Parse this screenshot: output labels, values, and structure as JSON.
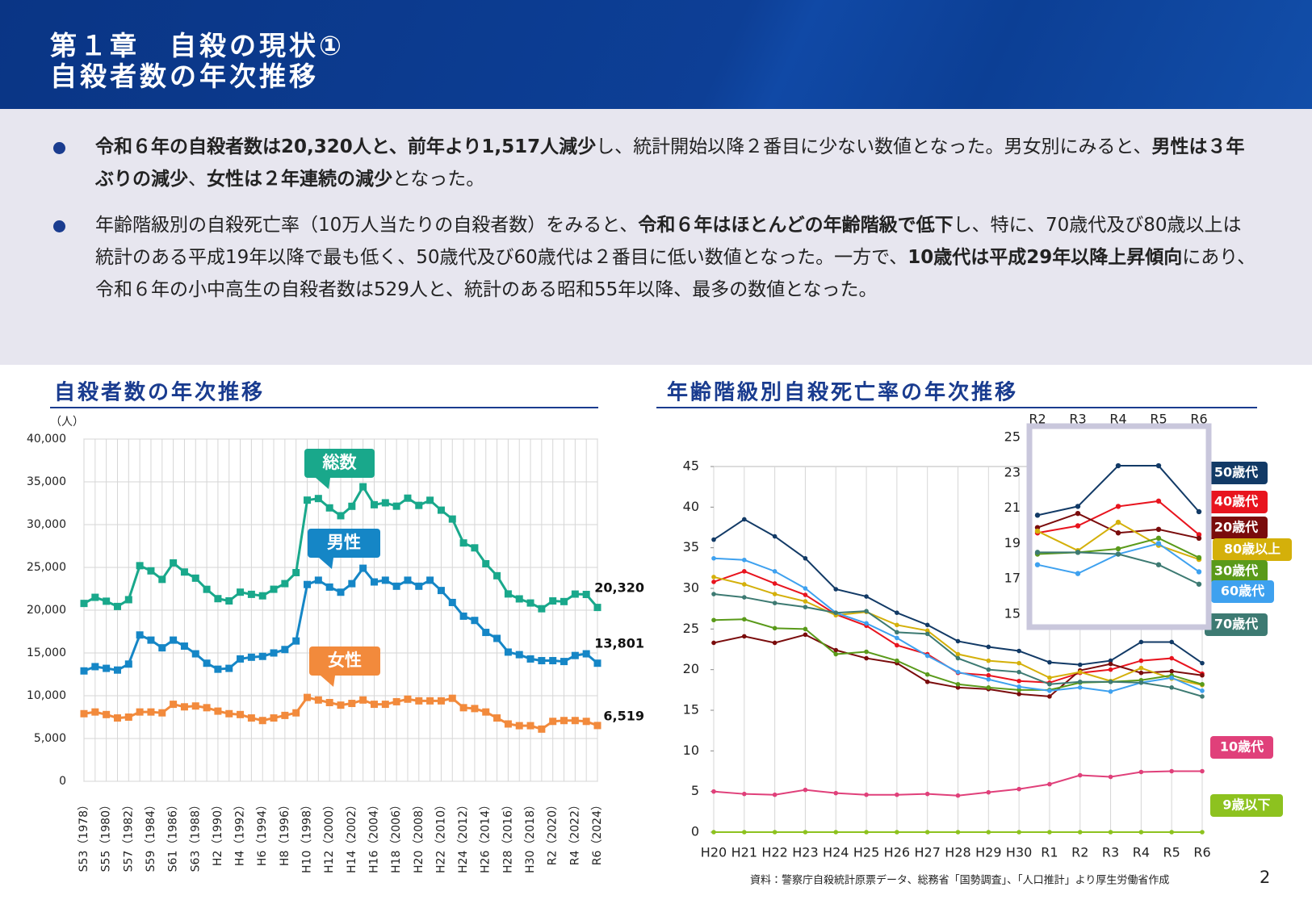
{
  "header": {
    "chapter": "第１章　自殺の現状①",
    "title": "自殺者数の年次推移"
  },
  "bullets": [
    [
      {
        "text": "令和６年の自殺者数は20,320人と、前年より1,517人減少",
        "bold": true
      },
      {
        "text": "し、統計開始以降２番目に少ない数値となった。男女別にみると、",
        "bold": false
      },
      {
        "text": "男性は３年ぶりの減少",
        "bold": true
      },
      {
        "text": "、",
        "bold": false
      },
      {
        "text": "女性は２年連続の減少",
        "bold": true
      },
      {
        "text": "となった。",
        "bold": false
      }
    ],
    [
      {
        "text": "年齢階級別の自殺死亡率（10万人当たりの自殺者数）をみると、",
        "bold": false
      },
      {
        "text": "令和６年はほとんどの年齢階級で低下",
        "bold": true
      },
      {
        "text": "し、特に、70歳代及び80歳以上は統計のある平成19年以降で最も低く、50歳代及び60歳代は２番目に低い数値となった。一方で、",
        "bold": false
      },
      {
        "text": "10歳代は平成29年以降上昇傾向",
        "bold": true
      },
      {
        "text": "にあり、令和６年の小中高生の自殺者数は529人と、統計のある昭和55年以降、最多の数値となった。",
        "bold": false
      }
    ]
  ],
  "chart_data": [
    {
      "type": "line",
      "title": "自殺者数の年次推移",
      "y_label": "（人）",
      "marker": "square",
      "grid": true,
      "categories": [
        "S53（1978）",
        null,
        "S55（1980）",
        null,
        "S57（1982）",
        null,
        "S59（1984）",
        null,
        "S61（1986）",
        null,
        "S63（1988）",
        null,
        "H2（1990）",
        null,
        "H4（1992）",
        null,
        "H6（1994）",
        null,
        "H8（1996）",
        null,
        "H10（1998）",
        null,
        "H12（2000）",
        null,
        "H14（2002）",
        null,
        "H16（2004）",
        null,
        "H18（2006）",
        null,
        "H20（2008）",
        null,
        "H22（2010）",
        null,
        "H24（2012）",
        null,
        "H26（2014）",
        null,
        "H28（2016）",
        null,
        "H30（2018）",
        null,
        "R2（2020）",
        null,
        "R4（2022）",
        null,
        "R6（2024）"
      ],
      "ylim": [
        0,
        40000
      ],
      "yticks": [
        0,
        {
          "value": 5000,
          "label": "5,000"
        },
        {
          "value": 10000,
          "label": "10,000"
        },
        {
          "value": 15000,
          "label": "15,000"
        },
        {
          "value": 20000,
          "label": "20,000"
        },
        {
          "value": 25000,
          "label": "25,000"
        },
        {
          "value": 30000,
          "label": "30,000"
        },
        {
          "value": 35000,
          "label": "35,000"
        },
        {
          "value": 40000,
          "label": "40,000"
        }
      ],
      "series": [
        {
          "name": "総数",
          "color": "#19a88b",
          "values": [
            20788,
            21503,
            21048,
            20434,
            21228,
            25202,
            24596,
            23599,
            25524,
            24460,
            23742,
            22436,
            21346,
            21084,
            22104,
            21851,
            21679,
            22445,
            23104,
            24391,
            32863,
            33048,
            31957,
            31042,
            32143,
            34427,
            32325,
            32552,
            32155,
            33093,
            32249,
            32845,
            31690,
            30651,
            27858,
            27283,
            25427,
            24025,
            21897,
            21321,
            20840,
            20169,
            21081,
            21007,
            21881,
            21837,
            20320
          ],
          "value_labels": [
            null,
            null,
            null,
            null,
            null,
            null,
            null,
            null,
            null,
            null,
            null,
            null,
            null,
            null,
            null,
            null,
            null,
            null,
            null,
            null,
            null,
            null,
            null,
            null,
            null,
            null,
            null,
            null,
            null,
            null,
            null,
            null,
            null,
            null,
            null,
            null,
            null,
            null,
            null,
            null,
            null,
            null,
            null,
            null,
            null,
            null,
            "20,320"
          ]
        },
        {
          "name": "男性",
          "color": "#1586c6",
          "values": [
            12900,
            13400,
            13200,
            13000,
            13700,
            17100,
            16500,
            15600,
            16500,
            15800,
            14900,
            13800,
            13100,
            13200,
            14300,
            14500,
            14600,
            15000,
            15400,
            16400,
            23000,
            23500,
            22700,
            22100,
            23100,
            24900,
            23300,
            23500,
            22800,
            23500,
            22800,
            23500,
            22300,
            20900,
            19300,
            18800,
            17400,
            16700,
            15100,
            14800,
            14300,
            14100,
            14100,
            14000,
            14700,
            14900,
            13801
          ],
          "value_labels": [
            null,
            null,
            null,
            null,
            null,
            null,
            null,
            null,
            null,
            null,
            null,
            null,
            null,
            null,
            null,
            null,
            null,
            null,
            null,
            null,
            null,
            null,
            null,
            null,
            null,
            null,
            null,
            null,
            null,
            null,
            null,
            null,
            null,
            null,
            null,
            null,
            null,
            null,
            null,
            null,
            null,
            null,
            null,
            null,
            null,
            null,
            "13,801"
          ]
        },
        {
          "name": "女性",
          "color": "#f28a3c",
          "values": [
            7900,
            8100,
            7800,
            7400,
            7500,
            8100,
            8100,
            8000,
            9000,
            8700,
            8800,
            8600,
            8200,
            7900,
            7800,
            7400,
            7100,
            7400,
            7700,
            8000,
            9800,
            9500,
            9200,
            8900,
            9100,
            9500,
            9000,
            9000,
            9300,
            9600,
            9400,
            9400,
            9400,
            9700,
            8600,
            8500,
            8100,
            7400,
            6700,
            6500,
            6500,
            6100,
            7000,
            7100,
            7100,
            7000,
            6519
          ],
          "value_labels": [
            null,
            null,
            null,
            null,
            null,
            null,
            null,
            null,
            null,
            null,
            null,
            null,
            null,
            null,
            null,
            null,
            null,
            null,
            null,
            null,
            null,
            null,
            null,
            null,
            null,
            null,
            null,
            null,
            null,
            null,
            null,
            null,
            null,
            null,
            null,
            null,
            null,
            null,
            null,
            null,
            null,
            null,
            null,
            null,
            null,
            null,
            "6,519"
          ]
        }
      ]
    },
    {
      "type": "line",
      "title": "年齢階級別自殺死亡率の年次推移",
      "marker": "circle",
      "grid": "x",
      "categories": [
        "H20",
        "H21",
        "H22",
        "H23",
        "H24",
        "H25",
        "H26",
        "H27",
        "H28",
        "H29",
        "H30",
        "R1",
        "R2",
        "R3",
        "R4",
        "R5",
        "R6"
      ],
      "ylim": [
        0,
        45
      ],
      "yticks": [
        0,
        5,
        10,
        15,
        20,
        25,
        30,
        35,
        40,
        45
      ],
      "series": [
        {
          "name": "50歳代",
          "color": "#123a66",
          "values": [
            36.0,
            38.5,
            36.4,
            33.7,
            29.9,
            29.0,
            27.0,
            25.5,
            23.5,
            22.8,
            22.3,
            20.9,
            20.6,
            21.1,
            23.4,
            23.4,
            20.8
          ]
        },
        {
          "name": "40歳代",
          "color": "#e8141e",
          "values": [
            30.8,
            32.1,
            30.6,
            29.2,
            26.8,
            25.4,
            23.0,
            21.9,
            19.6,
            19.3,
            18.6,
            18.4,
            19.6,
            20.0,
            21.1,
            21.4,
            19.5
          ]
        },
        {
          "name": "20歳代",
          "color": "#7a0c0c",
          "values": [
            23.3,
            24.1,
            23.3,
            24.3,
            22.4,
            21.4,
            20.8,
            18.5,
            17.8,
            17.6,
            17.0,
            16.7,
            19.9,
            20.7,
            19.6,
            19.8,
            19.3
          ]
        },
        {
          "name": "80歳以上",
          "color": "#d4b00a",
          "values": [
            31.4,
            30.5,
            29.3,
            28.4,
            26.7,
            27.1,
            25.5,
            24.8,
            21.9,
            21.1,
            20.8,
            19.0,
            19.7,
            18.6,
            20.2,
            18.9,
            18.1
          ]
        },
        {
          "name": "30歳代",
          "color": "#5a9a1a",
          "values": [
            26.1,
            26.2,
            25.1,
            25.0,
            21.9,
            22.2,
            21.1,
            19.4,
            18.2,
            17.8,
            17.5,
            17.5,
            18.4,
            18.5,
            18.7,
            19.3,
            18.2
          ]
        },
        {
          "name": "60歳代",
          "color": "#3ea1ef",
          "values": [
            33.7,
            33.5,
            32.1,
            30.0,
            27.0,
            25.7,
            23.9,
            21.7,
            19.7,
            18.8,
            17.9,
            17.4,
            17.8,
            17.3,
            18.4,
            19.0,
            17.4
          ]
        },
        {
          "name": "70歳代",
          "color": "#3d7a72",
          "values": [
            29.3,
            28.9,
            28.2,
            27.7,
            27.0,
            27.2,
            24.6,
            24.4,
            21.4,
            20.0,
            19.7,
            18.2,
            18.5,
            18.5,
            18.4,
            17.8,
            16.7
          ]
        },
        {
          "name": "10歳代",
          "color": "#e0407a",
          "values": [
            5.0,
            4.7,
            4.6,
            5.2,
            4.8,
            4.6,
            4.6,
            4.7,
            4.5,
            4.9,
            5.3,
            5.9,
            7.0,
            6.8,
            7.4,
            7.5,
            7.5
          ]
        },
        {
          "name": "9歳以下",
          "color": "#8dc21f",
          "values": [
            0,
            0,
            0,
            0,
            0,
            0,
            0,
            0,
            0,
            0,
            0,
            0,
            0,
            0,
            0,
            0,
            0
          ]
        }
      ],
      "inset": {
        "categories": [
          "R2",
          "R3",
          "R4",
          "R5",
          "R6"
        ],
        "ylim": [
          15,
          25
        ],
        "yticks": [
          15,
          17,
          19,
          21,
          23,
          25
        ]
      }
    }
  ],
  "source": "資料：警察庁自殺統計原票データ、総務省「国勢調査」、「人口推計」より厚生労働省作成",
  "page_number": 2
}
